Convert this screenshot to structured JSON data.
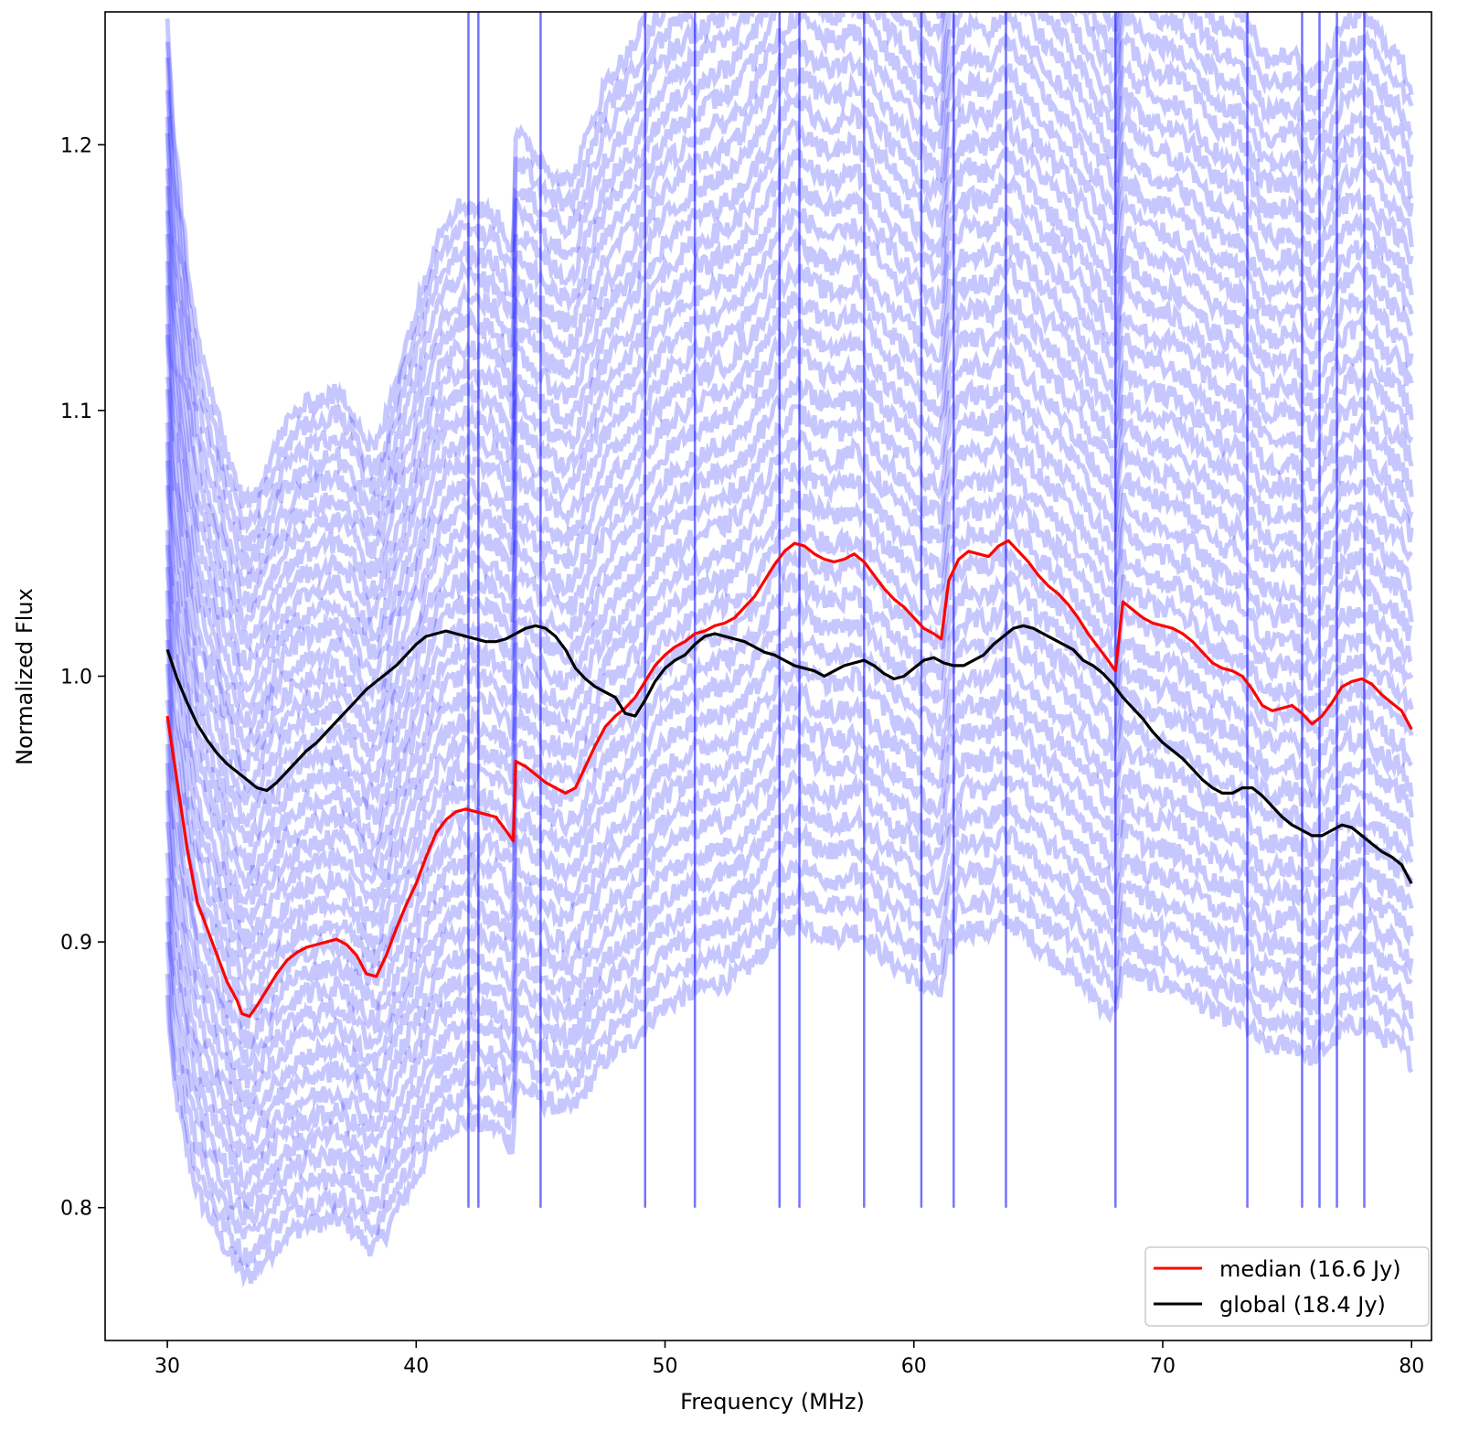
{
  "chart_data": {
    "type": "line",
    "title": "",
    "xlabel": "Frequency (MHz)",
    "ylabel": "Normalized Flux",
    "xlim": [
      27.5,
      80.8
    ],
    "ylim": [
      0.75,
      1.25
    ],
    "xticks": [
      30,
      40,
      50,
      60,
      70,
      80
    ],
    "xtick_labels": [
      "30",
      "40",
      "50",
      "60",
      "70",
      "80"
    ],
    "yticks": [
      0.8,
      0.9,
      1.0,
      1.1,
      1.2
    ],
    "ytick_labels": [
      "0.8",
      "0.9",
      "1.0",
      "1.1",
      "1.2"
    ],
    "grid": false,
    "legend_position": "bottom-right",
    "background_series": {
      "color": "#0000ff",
      "count": 40,
      "offset_min": -0.13,
      "offset_max": 0.25
    },
    "spikes_x": [
      42.1,
      42.5,
      45.0,
      49.2,
      51.2,
      54.6,
      55.4,
      58.0,
      60.3,
      61.6,
      63.7,
      68.1,
      73.4,
      75.6,
      76.3,
      77.0,
      78.1
    ],
    "series": [
      {
        "name": "median (16.6 Jy)",
        "color": "#ff0000",
        "x": [
          30.0,
          30.4,
          30.8,
          31.2,
          31.6,
          32.0,
          32.4,
          32.8,
          33.0,
          33.3,
          33.6,
          34.0,
          34.4,
          34.8,
          35.2,
          35.6,
          36.0,
          36.4,
          36.8,
          37.2,
          37.6,
          38.0,
          38.4,
          38.8,
          39.2,
          39.6,
          40.0,
          40.4,
          40.8,
          41.2,
          41.6,
          42.0,
          42.4,
          42.8,
          43.2,
          43.6,
          43.9,
          44.0,
          44.4,
          44.8,
          45.2,
          45.6,
          46.0,
          46.4,
          46.8,
          47.2,
          47.6,
          48.0,
          48.4,
          48.8,
          49.2,
          49.6,
          50.0,
          50.4,
          50.8,
          51.2,
          51.6,
          52.0,
          52.4,
          52.8,
          53.2,
          53.6,
          54.0,
          54.4,
          54.8,
          55.2,
          55.6,
          56.0,
          56.4,
          56.8,
          57.2,
          57.6,
          58.0,
          58.4,
          58.8,
          59.2,
          59.6,
          60.0,
          60.4,
          60.8,
          61.1,
          61.4,
          61.8,
          62.2,
          62.6,
          63.0,
          63.4,
          63.8,
          64.2,
          64.6,
          65.0,
          65.4,
          65.8,
          66.2,
          66.6,
          67.0,
          67.4,
          67.8,
          68.1,
          68.4,
          68.8,
          69.2,
          69.6,
          70.0,
          70.4,
          70.8,
          71.2,
          71.6,
          72.0,
          72.4,
          72.8,
          73.2,
          73.6,
          74.0,
          74.4,
          74.8,
          75.2,
          75.6,
          76.0,
          76.4,
          76.8,
          77.2,
          77.6,
          78.0,
          78.4,
          78.8,
          79.2,
          79.6,
          80.0
        ],
        "y": [
          0.985,
          0.96,
          0.935,
          0.915,
          0.905,
          0.895,
          0.885,
          0.878,
          0.873,
          0.872,
          0.876,
          0.882,
          0.888,
          0.893,
          0.896,
          0.898,
          0.899,
          0.9,
          0.901,
          0.899,
          0.895,
          0.888,
          0.887,
          0.895,
          0.905,
          0.914,
          0.922,
          0.932,
          0.941,
          0.946,
          0.949,
          0.95,
          0.949,
          0.948,
          0.947,
          0.942,
          0.938,
          0.968,
          0.966,
          0.963,
          0.96,
          0.958,
          0.956,
          0.958,
          0.966,
          0.974,
          0.981,
          0.985,
          0.988,
          0.992,
          0.998,
          1.004,
          1.008,
          1.011,
          1.013,
          1.016,
          1.017,
          1.019,
          1.02,
          1.022,
          1.026,
          1.03,
          1.036,
          1.042,
          1.047,
          1.05,
          1.049,
          1.046,
          1.044,
          1.043,
          1.044,
          1.046,
          1.043,
          1.038,
          1.033,
          1.029,
          1.026,
          1.022,
          1.018,
          1.016,
          1.014,
          1.036,
          1.044,
          1.047,
          1.046,
          1.045,
          1.049,
          1.051,
          1.047,
          1.043,
          1.038,
          1.034,
          1.031,
          1.027,
          1.022,
          1.016,
          1.011,
          1.006,
          1.002,
          1.028,
          1.025,
          1.022,
          1.02,
          1.019,
          1.018,
          1.016,
          1.013,
          1.009,
          1.005,
          1.003,
          1.002,
          1.0,
          0.995,
          0.989,
          0.987,
          0.988,
          0.989,
          0.986,
          0.982,
          0.985,
          0.99,
          0.996,
          0.998,
          0.999,
          0.997,
          0.993,
          0.99,
          0.987,
          0.98
        ]
      },
      {
        "name": "global (18.4 Jy)",
        "color": "#000000",
        "x": [
          30.0,
          30.4,
          30.8,
          31.2,
          31.6,
          32.0,
          32.4,
          32.8,
          33.2,
          33.6,
          34.0,
          34.4,
          34.8,
          35.2,
          35.6,
          36.0,
          36.4,
          36.8,
          37.2,
          37.6,
          38.0,
          38.4,
          38.8,
          39.2,
          39.6,
          40.0,
          40.4,
          40.8,
          41.2,
          41.6,
          42.0,
          42.4,
          42.8,
          43.2,
          43.6,
          44.0,
          44.4,
          44.8,
          45.2,
          45.6,
          46.0,
          46.4,
          46.8,
          47.2,
          47.6,
          48.0,
          48.4,
          48.8,
          49.2,
          49.6,
          50.0,
          50.4,
          50.8,
          51.2,
          51.6,
          52.0,
          52.4,
          52.8,
          53.2,
          53.6,
          54.0,
          54.4,
          54.8,
          55.2,
          55.6,
          56.0,
          56.4,
          56.8,
          57.2,
          57.6,
          58.0,
          58.4,
          58.8,
          59.2,
          59.6,
          60.0,
          60.4,
          60.8,
          61.2,
          61.6,
          62.0,
          62.4,
          62.8,
          63.2,
          63.6,
          64.0,
          64.4,
          64.8,
          65.2,
          65.6,
          66.0,
          66.4,
          66.8,
          67.2,
          67.6,
          68.0,
          68.4,
          68.8,
          69.2,
          69.6,
          70.0,
          70.4,
          70.8,
          71.2,
          71.6,
          72.0,
          72.4,
          72.8,
          73.2,
          73.6,
          74.0,
          74.4,
          74.8,
          75.2,
          75.6,
          76.0,
          76.4,
          76.8,
          77.2,
          77.6,
          78.0,
          78.4,
          78.8,
          79.2,
          79.6,
          80.0
        ],
        "y": [
          1.01,
          0.999,
          0.99,
          0.982,
          0.976,
          0.971,
          0.967,
          0.964,
          0.961,
          0.958,
          0.957,
          0.96,
          0.964,
          0.968,
          0.972,
          0.975,
          0.979,
          0.983,
          0.987,
          0.991,
          0.995,
          0.998,
          1.001,
          1.004,
          1.008,
          1.012,
          1.015,
          1.016,
          1.017,
          1.016,
          1.015,
          1.014,
          1.013,
          1.013,
          1.014,
          1.016,
          1.018,
          1.019,
          1.018,
          1.015,
          1.01,
          1.003,
          0.999,
          0.996,
          0.994,
          0.992,
          0.986,
          0.985,
          0.991,
          0.998,
          1.003,
          1.006,
          1.008,
          1.012,
          1.015,
          1.016,
          1.015,
          1.014,
          1.013,
          1.011,
          1.009,
          1.008,
          1.006,
          1.004,
          1.003,
          1.002,
          1.0,
          1.002,
          1.004,
          1.005,
          1.006,
          1.004,
          1.001,
          0.999,
          1.0,
          1.003,
          1.006,
          1.007,
          1.005,
          1.004,
          1.004,
          1.006,
          1.008,
          1.012,
          1.015,
          1.018,
          1.019,
          1.018,
          1.016,
          1.014,
          1.012,
          1.01,
          1.006,
          1.004,
          1.001,
          0.997,
          0.992,
          0.988,
          0.984,
          0.979,
          0.975,
          0.972,
          0.969,
          0.965,
          0.961,
          0.958,
          0.956,
          0.956,
          0.958,
          0.958,
          0.955,
          0.951,
          0.947,
          0.944,
          0.942,
          0.94,
          0.94,
          0.942,
          0.944,
          0.943,
          0.94,
          0.937,
          0.934,
          0.932,
          0.929,
          0.922
        ]
      }
    ]
  }
}
